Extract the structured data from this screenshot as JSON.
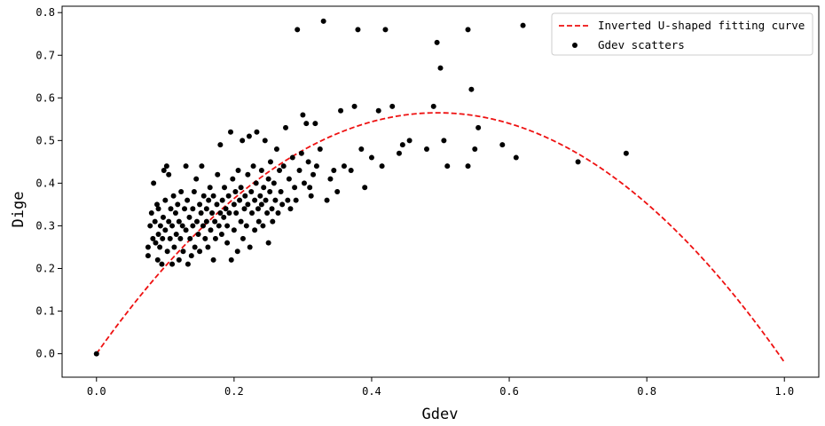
{
  "chart_data": {
    "type": "scatter",
    "xlabel": "Gdev",
    "ylabel": "Dige",
    "xlim": [
      -0.05,
      1.05
    ],
    "ylim": [
      -0.055,
      0.815
    ],
    "xticks": [
      0.0,
      0.2,
      0.4,
      0.6,
      0.8,
      1.0
    ],
    "xtick_labels": [
      "0.0",
      "0.2",
      "0.4",
      "0.6",
      "0.8",
      "1.0"
    ],
    "yticks": [
      0.0,
      0.1,
      0.2,
      0.3,
      0.4,
      0.5,
      0.6,
      0.7,
      0.8
    ],
    "ytick_labels": [
      "0.0",
      "0.1",
      "0.2",
      "0.3",
      "0.4",
      "0.5",
      "0.6",
      "0.7",
      "0.8"
    ],
    "grid": false,
    "legend_position": "top-right",
    "series": [
      {
        "name": "Inverted U-shaped fitting curve",
        "kind": "line",
        "style": "dashed",
        "color": "#ee1111",
        "equation": "y = 2.28*x - 2.30*x^2",
        "x_range": [
          0.0,
          1.0
        ]
      },
      {
        "name": "Gdev scatters",
        "kind": "scatter",
        "color": "#000000",
        "points": [
          [
            0.0,
            0.0
          ],
          [
            0.075,
            0.23
          ],
          [
            0.075,
            0.25
          ],
          [
            0.078,
            0.3
          ],
          [
            0.08,
            0.33
          ],
          [
            0.082,
            0.27
          ],
          [
            0.083,
            0.4
          ],
          [
            0.085,
            0.31
          ],
          [
            0.086,
            0.26
          ],
          [
            0.088,
            0.35
          ],
          [
            0.089,
            0.22
          ],
          [
            0.09,
            0.28
          ],
          [
            0.09,
            0.34
          ],
          [
            0.092,
            0.25
          ],
          [
            0.093,
            0.3
          ],
          [
            0.095,
            0.21
          ],
          [
            0.096,
            0.27
          ],
          [
            0.097,
            0.32
          ],
          [
            0.098,
            0.43
          ],
          [
            0.1,
            0.29
          ],
          [
            0.1,
            0.36
          ],
          [
            0.102,
            0.44
          ],
          [
            0.103,
            0.24
          ],
          [
            0.105,
            0.31
          ],
          [
            0.105,
            0.42
          ],
          [
            0.107,
            0.27
          ],
          [
            0.108,
            0.34
          ],
          [
            0.11,
            0.21
          ],
          [
            0.11,
            0.3
          ],
          [
            0.112,
            0.37
          ],
          [
            0.113,
            0.25
          ],
          [
            0.115,
            0.33
          ],
          [
            0.116,
            0.28
          ],
          [
            0.118,
            0.35
          ],
          [
            0.12,
            0.22
          ],
          [
            0.12,
            0.31
          ],
          [
            0.122,
            0.27
          ],
          [
            0.123,
            0.38
          ],
          [
            0.125,
            0.3
          ],
          [
            0.126,
            0.24
          ],
          [
            0.128,
            0.34
          ],
          [
            0.13,
            0.44
          ],
          [
            0.13,
            0.29
          ],
          [
            0.132,
            0.36
          ],
          [
            0.133,
            0.21
          ],
          [
            0.135,
            0.32
          ],
          [
            0.136,
            0.27
          ],
          [
            0.138,
            0.23
          ],
          [
            0.14,
            0.34
          ],
          [
            0.14,
            0.3
          ],
          [
            0.142,
            0.38
          ],
          [
            0.143,
            0.25
          ],
          [
            0.145,
            0.41
          ],
          [
            0.146,
            0.31
          ],
          [
            0.148,
            0.28
          ],
          [
            0.15,
            0.35
          ],
          [
            0.15,
            0.24
          ],
          [
            0.152,
            0.33
          ],
          [
            0.153,
            0.44
          ],
          [
            0.155,
            0.3
          ],
          [
            0.156,
            0.37
          ],
          [
            0.158,
            0.27
          ],
          [
            0.16,
            0.34
          ],
          [
            0.16,
            0.31
          ],
          [
            0.162,
            0.25
          ],
          [
            0.163,
            0.36
          ],
          [
            0.165,
            0.39
          ],
          [
            0.166,
            0.29
          ],
          [
            0.168,
            0.33
          ],
          [
            0.17,
            0.22
          ],
          [
            0.17,
            0.37
          ],
          [
            0.172,
            0.31
          ],
          [
            0.173,
            0.27
          ],
          [
            0.175,
            0.35
          ],
          [
            0.176,
            0.42
          ],
          [
            0.178,
            0.3
          ],
          [
            0.18,
            0.33
          ],
          [
            0.18,
            0.49
          ],
          [
            0.182,
            0.28
          ],
          [
            0.183,
            0.36
          ],
          [
            0.185,
            0.32
          ],
          [
            0.186,
            0.39
          ],
          [
            0.188,
            0.34
          ],
          [
            0.19,
            0.3
          ],
          [
            0.19,
            0.26
          ],
          [
            0.192,
            0.37
          ],
          [
            0.193,
            0.33
          ],
          [
            0.195,
            0.52
          ],
          [
            0.196,
            0.22
          ],
          [
            0.198,
            0.41
          ],
          [
            0.2,
            0.35
          ],
          [
            0.2,
            0.29
          ],
          [
            0.202,
            0.38
          ],
          [
            0.203,
            0.33
          ],
          [
            0.205,
            0.24
          ],
          [
            0.206,
            0.43
          ],
          [
            0.208,
            0.36
          ],
          [
            0.21,
            0.31
          ],
          [
            0.21,
            0.39
          ],
          [
            0.212,
            0.5
          ],
          [
            0.213,
            0.27
          ],
          [
            0.215,
            0.34
          ],
          [
            0.216,
            0.37
          ],
          [
            0.218,
            0.3
          ],
          [
            0.22,
            0.42
          ],
          [
            0.22,
            0.35
          ],
          [
            0.222,
            0.51
          ],
          [
            0.223,
            0.25
          ],
          [
            0.225,
            0.38
          ],
          [
            0.226,
            0.33
          ],
          [
            0.228,
            0.44
          ],
          [
            0.23,
            0.36
          ],
          [
            0.23,
            0.29
          ],
          [
            0.232,
            0.4
          ],
          [
            0.233,
            0.52
          ],
          [
            0.235,
            0.34
          ],
          [
            0.236,
            0.31
          ],
          [
            0.238,
            0.37
          ],
          [
            0.24,
            0.43
          ],
          [
            0.24,
            0.35
          ],
          [
            0.242,
            0.3
          ],
          [
            0.243,
            0.39
          ],
          [
            0.245,
            0.5
          ],
          [
            0.246,
            0.36
          ],
          [
            0.248,
            0.33
          ],
          [
            0.25,
            0.41
          ],
          [
            0.25,
            0.26
          ],
          [
            0.252,
            0.38
          ],
          [
            0.253,
            0.45
          ],
          [
            0.255,
            0.34
          ],
          [
            0.256,
            0.31
          ],
          [
            0.258,
            0.4
          ],
          [
            0.26,
            0.36
          ],
          [
            0.262,
            0.48
          ],
          [
            0.264,
            0.33
          ],
          [
            0.266,
            0.43
          ],
          [
            0.268,
            0.38
          ],
          [
            0.27,
            0.35
          ],
          [
            0.272,
            0.44
          ],
          [
            0.275,
            0.53
          ],
          [
            0.278,
            0.36
          ],
          [
            0.28,
            0.41
          ],
          [
            0.282,
            0.34
          ],
          [
            0.285,
            0.46
          ],
          [
            0.288,
            0.39
          ],
          [
            0.29,
            0.36
          ],
          [
            0.292,
            0.76
          ],
          [
            0.295,
            0.43
          ],
          [
            0.298,
            0.47
          ],
          [
            0.3,
            0.56
          ],
          [
            0.302,
            0.4
          ],
          [
            0.305,
            0.54
          ],
          [
            0.308,
            0.45
          ],
          [
            0.31,
            0.39
          ],
          [
            0.312,
            0.37
          ],
          [
            0.315,
            0.42
          ],
          [
            0.318,
            0.54
          ],
          [
            0.32,
            0.44
          ],
          [
            0.325,
            0.48
          ],
          [
            0.33,
            0.78
          ],
          [
            0.335,
            0.36
          ],
          [
            0.34,
            0.41
          ],
          [
            0.345,
            0.43
          ],
          [
            0.35,
            0.38
          ],
          [
            0.355,
            0.57
          ],
          [
            0.36,
            0.44
          ],
          [
            0.37,
            0.43
          ],
          [
            0.375,
            0.58
          ],
          [
            0.38,
            0.76
          ],
          [
            0.385,
            0.48
          ],
          [
            0.39,
            0.39
          ],
          [
            0.4,
            0.46
          ],
          [
            0.41,
            0.57
          ],
          [
            0.415,
            0.44
          ],
          [
            0.42,
            0.76
          ],
          [
            0.43,
            0.58
          ],
          [
            0.44,
            0.47
          ],
          [
            0.445,
            0.49
          ],
          [
            0.455,
            0.5
          ],
          [
            0.48,
            0.48
          ],
          [
            0.49,
            0.58
          ],
          [
            0.495,
            0.73
          ],
          [
            0.5,
            0.67
          ],
          [
            0.505,
            0.5
          ],
          [
            0.51,
            0.44
          ],
          [
            0.54,
            0.44
          ],
          [
            0.54,
            0.76
          ],
          [
            0.545,
            0.62
          ],
          [
            0.55,
            0.48
          ],
          [
            0.555,
            0.53
          ],
          [
            0.59,
            0.49
          ],
          [
            0.61,
            0.46
          ],
          [
            0.62,
            0.77
          ],
          [
            0.7,
            0.45
          ],
          [
            0.77,
            0.47
          ]
        ]
      }
    ]
  }
}
